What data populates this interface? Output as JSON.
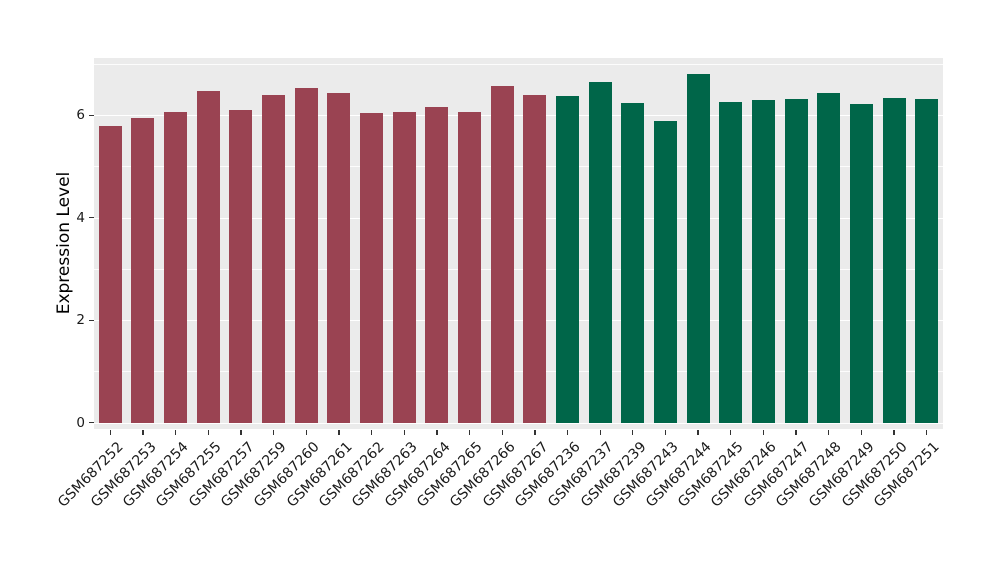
{
  "chart_data": {
    "type": "bar",
    "title": "",
    "xlabel": "",
    "ylabel": "Expression Level",
    "ylim": [
      0,
      7.1
    ],
    "yticks": [
      0,
      2,
      4,
      6
    ],
    "yticks_minor": [
      1,
      3,
      5,
      7
    ],
    "grid": "white major and minor horizontal gridlines on gray panel",
    "legend_position": "none",
    "categories": [
      "GSM687252",
      "GSM687253",
      "GSM687254",
      "GSM687255",
      "GSM687257",
      "GSM687259",
      "GSM687260",
      "GSM687261",
      "GSM687262",
      "GSM687263",
      "GSM687264",
      "GSM687265",
      "GSM687266",
      "GSM687267",
      "GSM687236",
      "GSM687237",
      "GSM687239",
      "GSM687243",
      "GSM687244",
      "GSM687245",
      "GSM687246",
      "GSM687247",
      "GSM687248",
      "GSM687249",
      "GSM687250",
      "GSM687251"
    ],
    "values": [
      5.78,
      5.95,
      6.06,
      6.46,
      6.1,
      6.4,
      6.53,
      6.43,
      6.04,
      6.05,
      6.16,
      6.05,
      6.56,
      6.4,
      6.38,
      6.65,
      6.24,
      5.88,
      6.8,
      6.25,
      6.29,
      6.31,
      6.43,
      6.22,
      6.33,
      6.31
    ],
    "groups": [
      "maroon",
      "maroon",
      "maroon",
      "maroon",
      "maroon",
      "maroon",
      "maroon",
      "maroon",
      "maroon",
      "maroon",
      "maroon",
      "maroon",
      "maroon",
      "maroon",
      "green",
      "green",
      "green",
      "green",
      "green",
      "green",
      "green",
      "green",
      "green",
      "green",
      "green",
      "green"
    ],
    "group_colors": {
      "maroon": "#9A4352",
      "green": "#006649"
    },
    "panel_bg": "#EBEBEB",
    "grid_color": "#FFFFFF",
    "tick_color": "#333333",
    "axis_text_color": "#1A1A1A"
  }
}
